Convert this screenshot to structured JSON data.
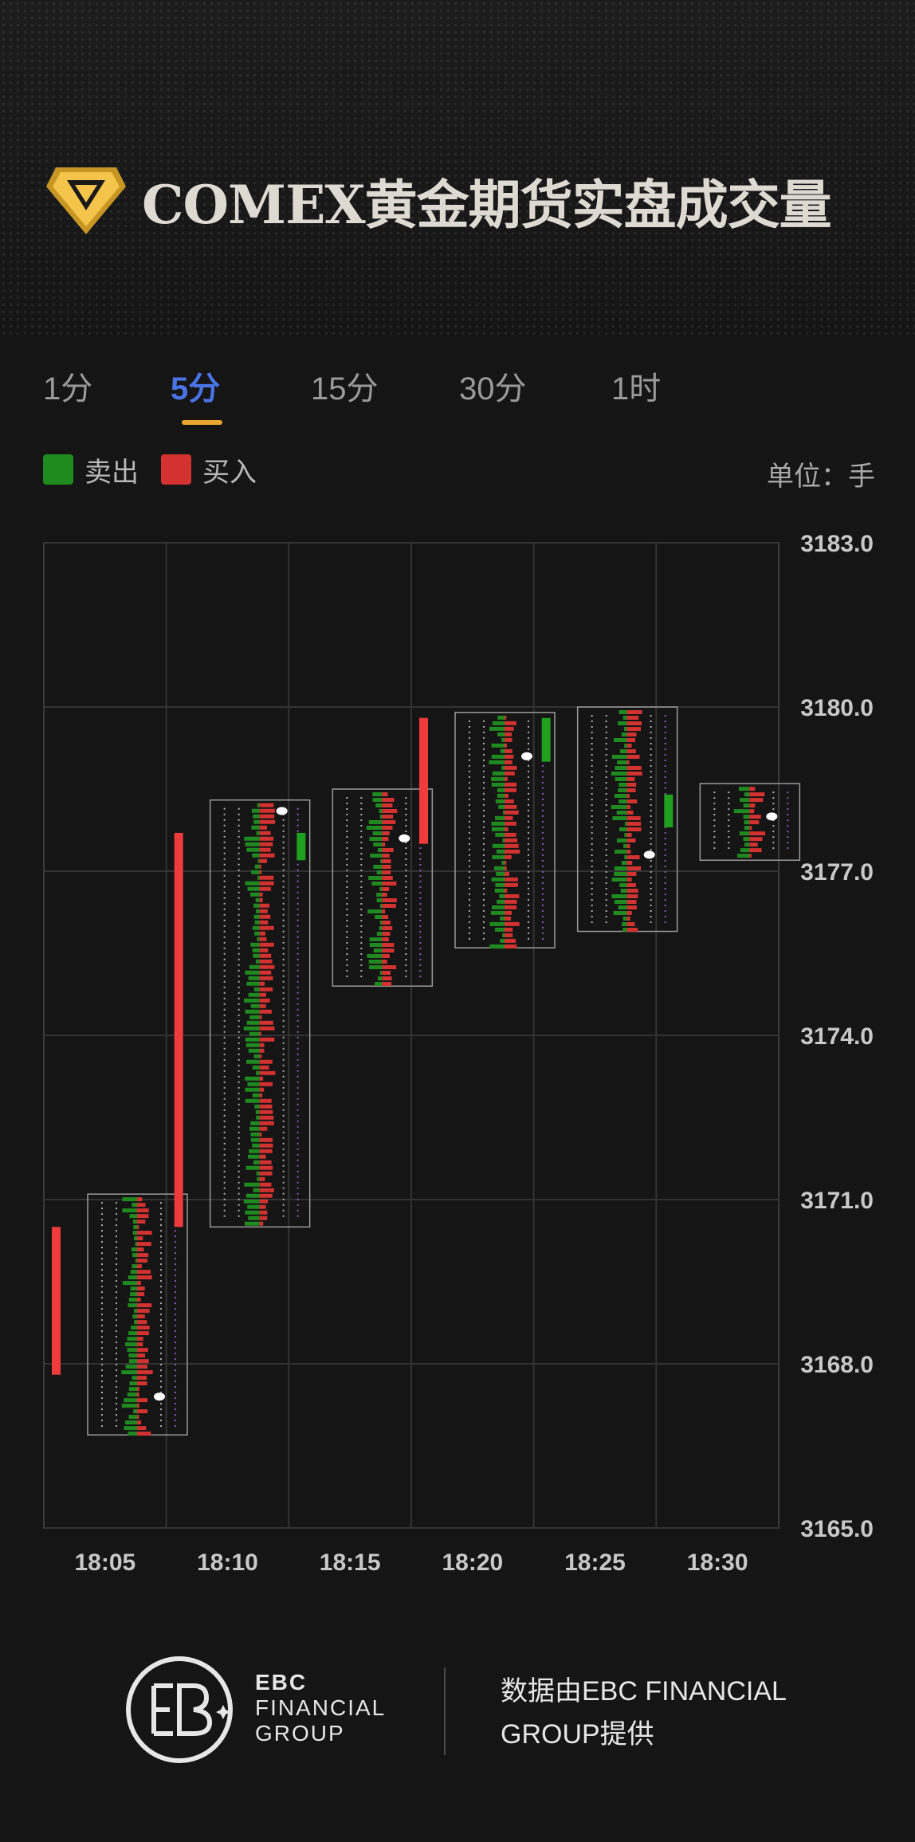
{
  "header": {
    "title": "COMEX黄金期货实盘成交量",
    "logo_icon": "gold-diamond-icon"
  },
  "tabs": [
    {
      "label": "1分",
      "active": false
    },
    {
      "label": "5分",
      "active": true
    },
    {
      "label": "15分",
      "active": false
    },
    {
      "label": "30分",
      "active": false
    },
    {
      "label": "1时",
      "active": false
    }
  ],
  "legend": {
    "sell": {
      "label": "卖出",
      "color": "#1f8a1f"
    },
    "buy": {
      "label": "买入",
      "color": "#d43131"
    },
    "unit": "单位：手"
  },
  "chart_data": {
    "type": "candlestick-footprint",
    "x_labels": [
      "18:05",
      "18:10",
      "18:15",
      "18:20",
      "18:25",
      "18:30"
    ],
    "y_ticks": [
      "3183.0",
      "3180.0",
      "3177.0",
      "3174.0",
      "3171.0",
      "3168.0",
      "3165.0"
    ],
    "ylim": [
      3165.0,
      3183.0
    ],
    "grid": true,
    "candles": [
      {
        "time": "18:05",
        "open": 3167.8,
        "close": 3170.5,
        "high": 3171.1,
        "low": 3166.7,
        "color": "#ef3b3b",
        "poc": 3167.4
      },
      {
        "time": "18:10",
        "open": 3170.5,
        "close": 3177.7,
        "high": 3178.3,
        "low": 3170.5,
        "color": "#ef3b3b",
        "poc": 3178.1
      },
      {
        "time": "18:15",
        "open": 3177.7,
        "close": 3177.2,
        "high": 3178.5,
        "low": 3174.9,
        "color": "#1fa11f",
        "poc": 3177.6
      },
      {
        "time": "18:20",
        "open": 3177.5,
        "close": 3179.8,
        "high": 3179.9,
        "low": 3175.6,
        "color": "#ef3b3b",
        "poc": 3179.1
      },
      {
        "time": "18:25",
        "open": 3179.8,
        "close": 3179.0,
        "high": 3180.0,
        "low": 3175.9,
        "color": "#1fa11f",
        "poc": 3177.3
      },
      {
        "time": "18:30",
        "open": 3178.4,
        "close": 3177.8,
        "high": 3178.6,
        "low": 3177.2,
        "color": "#1fa11f",
        "poc": 3178.0
      }
    ]
  },
  "footer": {
    "brand_line1": "EBC",
    "brand_line2": "FINANCIAL",
    "brand_line3": "GROUP",
    "source_line1": "数据由EBC FINANCIAL",
    "source_line2": "GROUP提供"
  }
}
